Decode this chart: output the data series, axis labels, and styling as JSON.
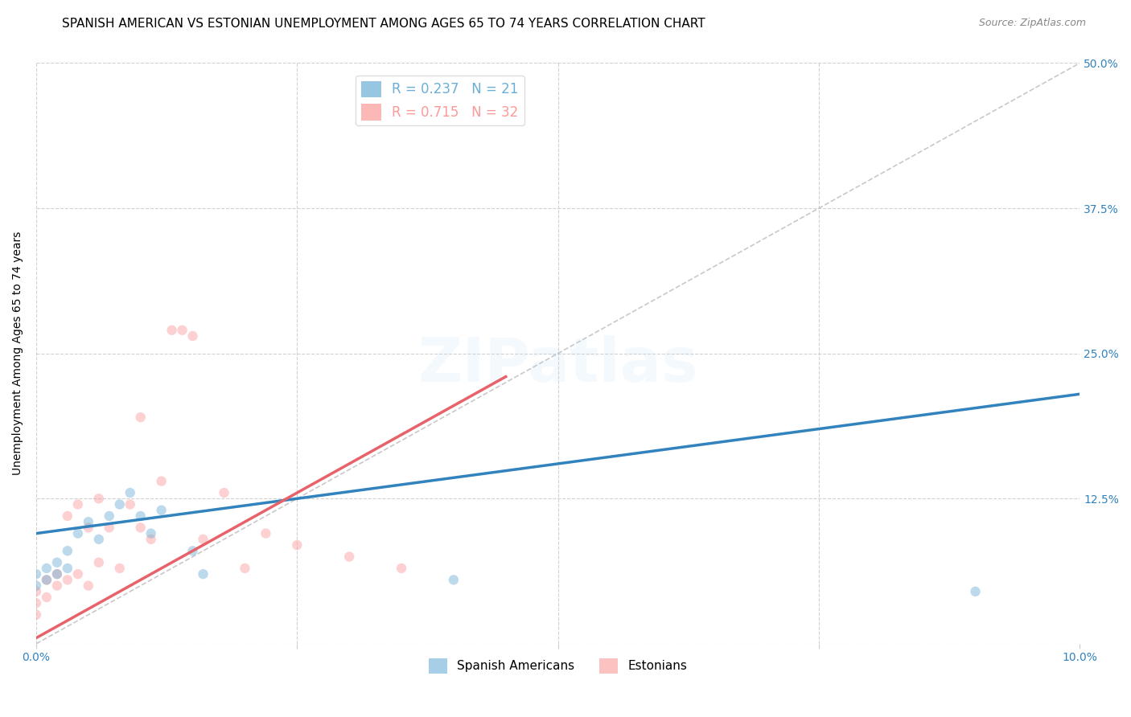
{
  "title": "SPANISH AMERICAN VS ESTONIAN UNEMPLOYMENT AMONG AGES 65 TO 74 YEARS CORRELATION CHART",
  "source": "Source: ZipAtlas.com",
  "ylabel": "Unemployment Among Ages 65 to 74 years",
  "xlim": [
    0.0,
    0.1
  ],
  "ylim": [
    0.0,
    0.5
  ],
  "xticks": [
    0.0,
    0.025,
    0.05,
    0.075,
    0.1
  ],
  "xticklabels": [
    "0.0%",
    "",
    "",
    "",
    "10.0%"
  ],
  "yticks_right": [
    0.0,
    0.125,
    0.25,
    0.375,
    0.5
  ],
  "yticklabels_right": [
    "",
    "12.5%",
    "25.0%",
    "37.5%",
    "50.0%"
  ],
  "watermark": "ZIPatlas",
  "legend_entries": [
    {
      "label": "R = 0.237   N = 21",
      "color": "#6baed6"
    },
    {
      "label": "R = 0.715   N = 32",
      "color": "#fb9a99"
    }
  ],
  "spanish_scatter_x": [
    0.0,
    0.0,
    0.001,
    0.001,
    0.002,
    0.002,
    0.003,
    0.003,
    0.004,
    0.005,
    0.006,
    0.007,
    0.008,
    0.009,
    0.01,
    0.011,
    0.012,
    0.015,
    0.016,
    0.04,
    0.09
  ],
  "spanish_scatter_y": [
    0.05,
    0.06,
    0.055,
    0.065,
    0.06,
    0.07,
    0.065,
    0.08,
    0.095,
    0.105,
    0.09,
    0.11,
    0.12,
    0.13,
    0.11,
    0.095,
    0.115,
    0.08,
    0.06,
    0.055,
    0.045
  ],
  "estonian_scatter_x": [
    0.0,
    0.0,
    0.0,
    0.001,
    0.001,
    0.002,
    0.002,
    0.003,
    0.003,
    0.004,
    0.004,
    0.005,
    0.005,
    0.006,
    0.006,
    0.007,
    0.008,
    0.009,
    0.01,
    0.01,
    0.011,
    0.012,
    0.013,
    0.014,
    0.015,
    0.016,
    0.018,
    0.02,
    0.022,
    0.025,
    0.03,
    0.035
  ],
  "estonian_scatter_y": [
    0.025,
    0.035,
    0.045,
    0.04,
    0.055,
    0.05,
    0.06,
    0.055,
    0.11,
    0.06,
    0.12,
    0.05,
    0.1,
    0.07,
    0.125,
    0.1,
    0.065,
    0.12,
    0.1,
    0.195,
    0.09,
    0.14,
    0.27,
    0.27,
    0.265,
    0.09,
    0.13,
    0.065,
    0.095,
    0.085,
    0.075,
    0.065
  ],
  "spanish_line_x": [
    0.0,
    0.1
  ],
  "spanish_line_y": [
    0.095,
    0.215
  ],
  "estonian_line_x": [
    0.0,
    0.045
  ],
  "estonian_line_y": [
    0.005,
    0.23
  ],
  "spanish_color": "#6baed6",
  "estonian_color": "#fb9a99",
  "spanish_line_color": "#3182bd",
  "estonian_line_color": "#e8626a",
  "grid_color": "#cccccc",
  "background_color": "#ffffff",
  "title_fontsize": 11,
  "axis_fontsize": 10,
  "tick_fontsize": 10,
  "scatter_size": 80,
  "scatter_alpha": 0.45,
  "watermark_alpha": 0.12,
  "watermark_fontsize": 55
}
